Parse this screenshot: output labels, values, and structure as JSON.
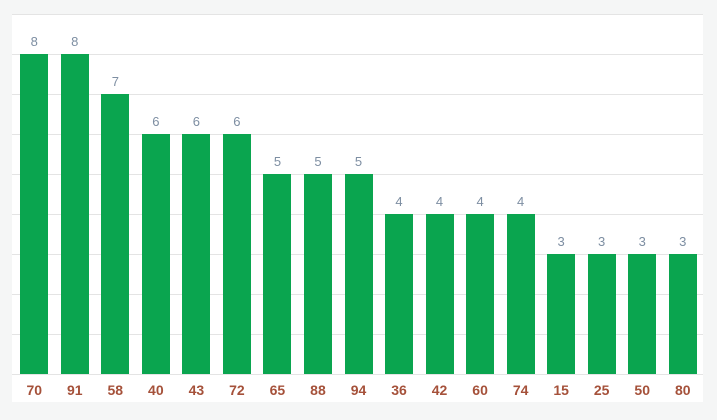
{
  "chart_data": {
    "type": "bar",
    "categories": [
      "70",
      "91",
      "58",
      "40",
      "43",
      "72",
      "65",
      "88",
      "94",
      "36",
      "42",
      "60",
      "74",
      "15",
      "25",
      "50",
      "80"
    ],
    "values": [
      8,
      8,
      7,
      6,
      6,
      6,
      5,
      5,
      5,
      4,
      4,
      4,
      4,
      3,
      3,
      3,
      3
    ],
    "title": "",
    "xlabel": "",
    "ylabel": "",
    "ylim": [
      0,
      9
    ],
    "grid": true,
    "gridline_step": 1,
    "legend": "none",
    "value_labels_shown": true,
    "colors": {
      "bar": "#0aa54f",
      "value_label": "#7d8ea2",
      "category_label": "#a5513a",
      "gridline": "#e4e4e4",
      "plot_background": "#ffffff",
      "margin_background": "#f5f6f6"
    }
  }
}
